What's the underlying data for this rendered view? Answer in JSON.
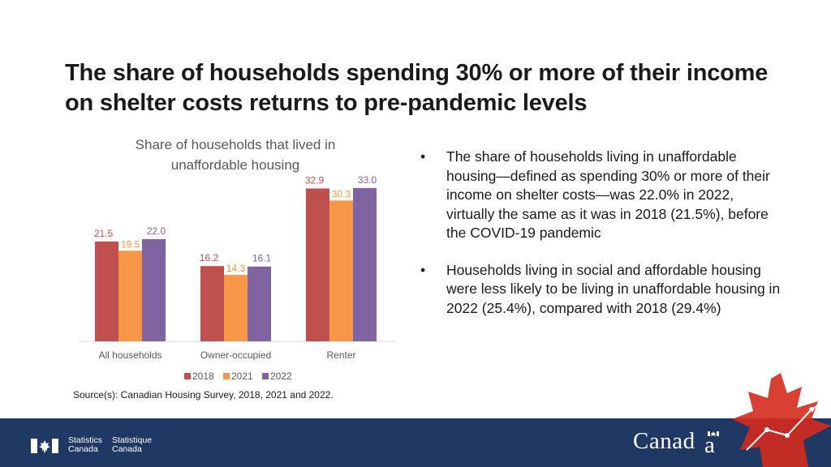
{
  "slide": {
    "title": "The share of households spending 30% or more of their income on shelter costs returns to pre-pandemic levels",
    "source": "Source(s): Canadian Housing Survey, 2018, 2021 and 2022.",
    "bullets": [
      "The share of households living in unaffordable housing—defined as spending 30% or more of their income on shelter costs—was 22.0% in 2022, virtually the same as it was in 2018 (21.5%), before the COVID-19 pandemic",
      "Households living in social and affordable housing were less likely to be living in unaffordable housing in 2022 (25.4%), compared with 2018 (29.4%)"
    ],
    "bullet_marker": "•"
  },
  "footer": {
    "stats_en_1": "Statistics",
    "stats_en_2": "Canada",
    "stats_fr_1": "Statistique",
    "stats_fr_2": "Canada",
    "wordmark": "Canad",
    "background": "#1f3864"
  },
  "chart_data": {
    "type": "bar",
    "title": "Share of households that lived in unaffordable housing",
    "categories": [
      "All households",
      "Owner-occupied",
      "Renter"
    ],
    "series": [
      {
        "name": "2018",
        "values": [
          21.5,
          16.2,
          32.9
        ],
        "color": "#c0504d"
      },
      {
        "name": "2021",
        "values": [
          19.5,
          14.3,
          30.3
        ],
        "color": "#f79646"
      },
      {
        "name": "2022",
        "values": [
          22.0,
          16.1,
          33.0
        ],
        "color": "#8064a2"
      }
    ],
    "ylim": [
      0,
      35
    ],
    "grid": false,
    "legend": "bottom",
    "data_labels": true
  }
}
